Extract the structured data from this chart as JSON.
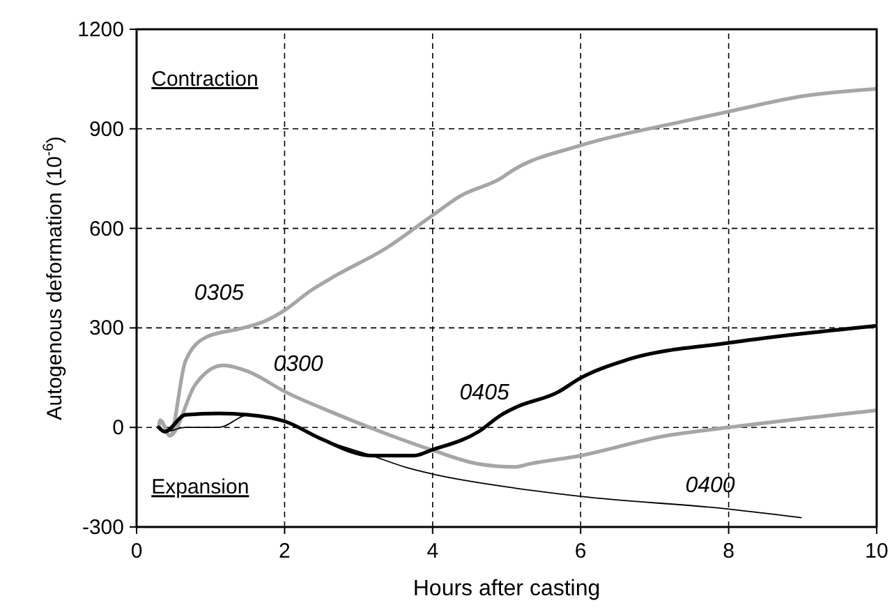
{
  "chart_data": {
    "type": "line",
    "xlabel": "Hours after casting",
    "ylabel": "Autogenous deformation (10$^{-6}$)",
    "xlim": [
      0,
      10
    ],
    "xticks": [
      0,
      2,
      4,
      6,
      8,
      10
    ],
    "ylim": [
      -300,
      1200
    ],
    "yticks": [
      -300,
      0,
      300,
      600,
      900,
      1200
    ],
    "grid": true,
    "line_style": "solid",
    "annotations": [
      "Contraction",
      "Expansion"
    ],
    "series": [
      {
        "name": "0305",
        "color": "#a6a6a6",
        "x": [
          0.3,
          0.32,
          0.45,
          0.66,
          0.94,
          1.41,
          1.73,
          2.02,
          2.35,
          2.67,
          3.37,
          3.99,
          4.37,
          4.93,
          5.07,
          6.0,
          7.38,
          8.0,
          9.02,
          9.98
        ],
        "values": [
          0,
          21,
          -25,
          200,
          272,
          298,
          320,
          356,
          412,
          455,
          540,
          638,
          697,
          752,
          773,
          850,
          922,
          952,
          999,
          1020
        ]
      },
      {
        "name": "0300",
        "color": "#a6a6a6",
        "x": [
          0.3,
          0.32,
          0.45,
          0.79,
          1.17,
          1.49,
          2.02,
          2.67,
          3.3,
          3.99,
          4.62,
          5.12,
          5.31,
          6.0,
          7.13,
          8.0,
          9.98
        ],
        "values": [
          0,
          21,
          -25,
          128,
          187,
          170,
          106,
          43,
          -13,
          -68,
          -110,
          -119,
          -110,
          -85,
          -26,
          0,
          51
        ]
      },
      {
        "name": "0405",
        "color": "#000000",
        "x": [
          0.3,
          0.38,
          0.66,
          1.11,
          1.51,
          2.02,
          2.49,
          3.18,
          3.75,
          3.99,
          4.62,
          4.93,
          5.12,
          5.69,
          6.0,
          6.63,
          8.0,
          9.98
        ],
        "values": [
          0,
          -13,
          38,
          42,
          38,
          17,
          -34,
          -85,
          -85,
          -68,
          -13,
          38,
          60,
          106,
          149,
          204,
          255,
          306
        ]
      },
      {
        "name": "0400",
        "color": "#000000",
        "x": [
          0.3,
          0.38,
          0.66,
          1.11,
          1.51,
          2.02,
          2.49,
          3.18,
          3.62,
          3.99,
          5.12,
          6.0,
          8.0,
          8.98
        ],
        "values": [
          0,
          -13,
          0,
          0,
          38,
          17,
          -34,
          -85,
          -119,
          -140,
          -183,
          -208,
          -246,
          -272
        ]
      }
    ]
  }
}
